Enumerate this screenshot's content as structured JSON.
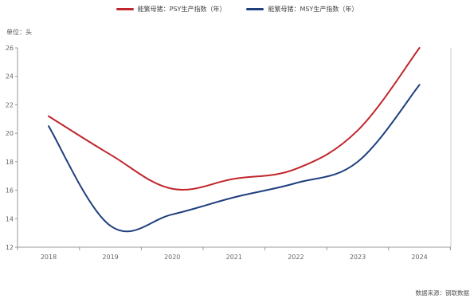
{
  "legend": {
    "items": [
      {
        "label": "能繁母猪：PSY生产指数（年）",
        "color": "#C0262D"
      },
      {
        "label": "能繁母猪：MSY生产指数（年）",
        "color": "#1F3F7E"
      }
    ]
  },
  "unit_label": "单位：头",
  "source_label": "数据来源：钢联数据",
  "chart_data": {
    "type": "line",
    "title": "",
    "xlabel": "",
    "ylabel": "单位：头",
    "categories": [
      "2018",
      "2019",
      "2020",
      "2021",
      "2022",
      "2023",
      "2024"
    ],
    "ylim": [
      12,
      26
    ],
    "yticks": [
      12,
      14,
      16,
      18,
      20,
      22,
      24,
      26
    ],
    "grid": false,
    "legend_position": "top",
    "series": [
      {
        "name": "能繁母猪：PSY生产指数（年）",
        "color": "#C0262D",
        "values": [
          21.2,
          18.5,
          16.1,
          16.8,
          17.5,
          20.2,
          26.0
        ]
      },
      {
        "name": "能繁母猪：MSY生产指数（年）",
        "color": "#1F3F7E",
        "values": [
          20.5,
          13.5,
          14.3,
          15.5,
          16.5,
          18.0,
          23.4
        ]
      }
    ]
  }
}
